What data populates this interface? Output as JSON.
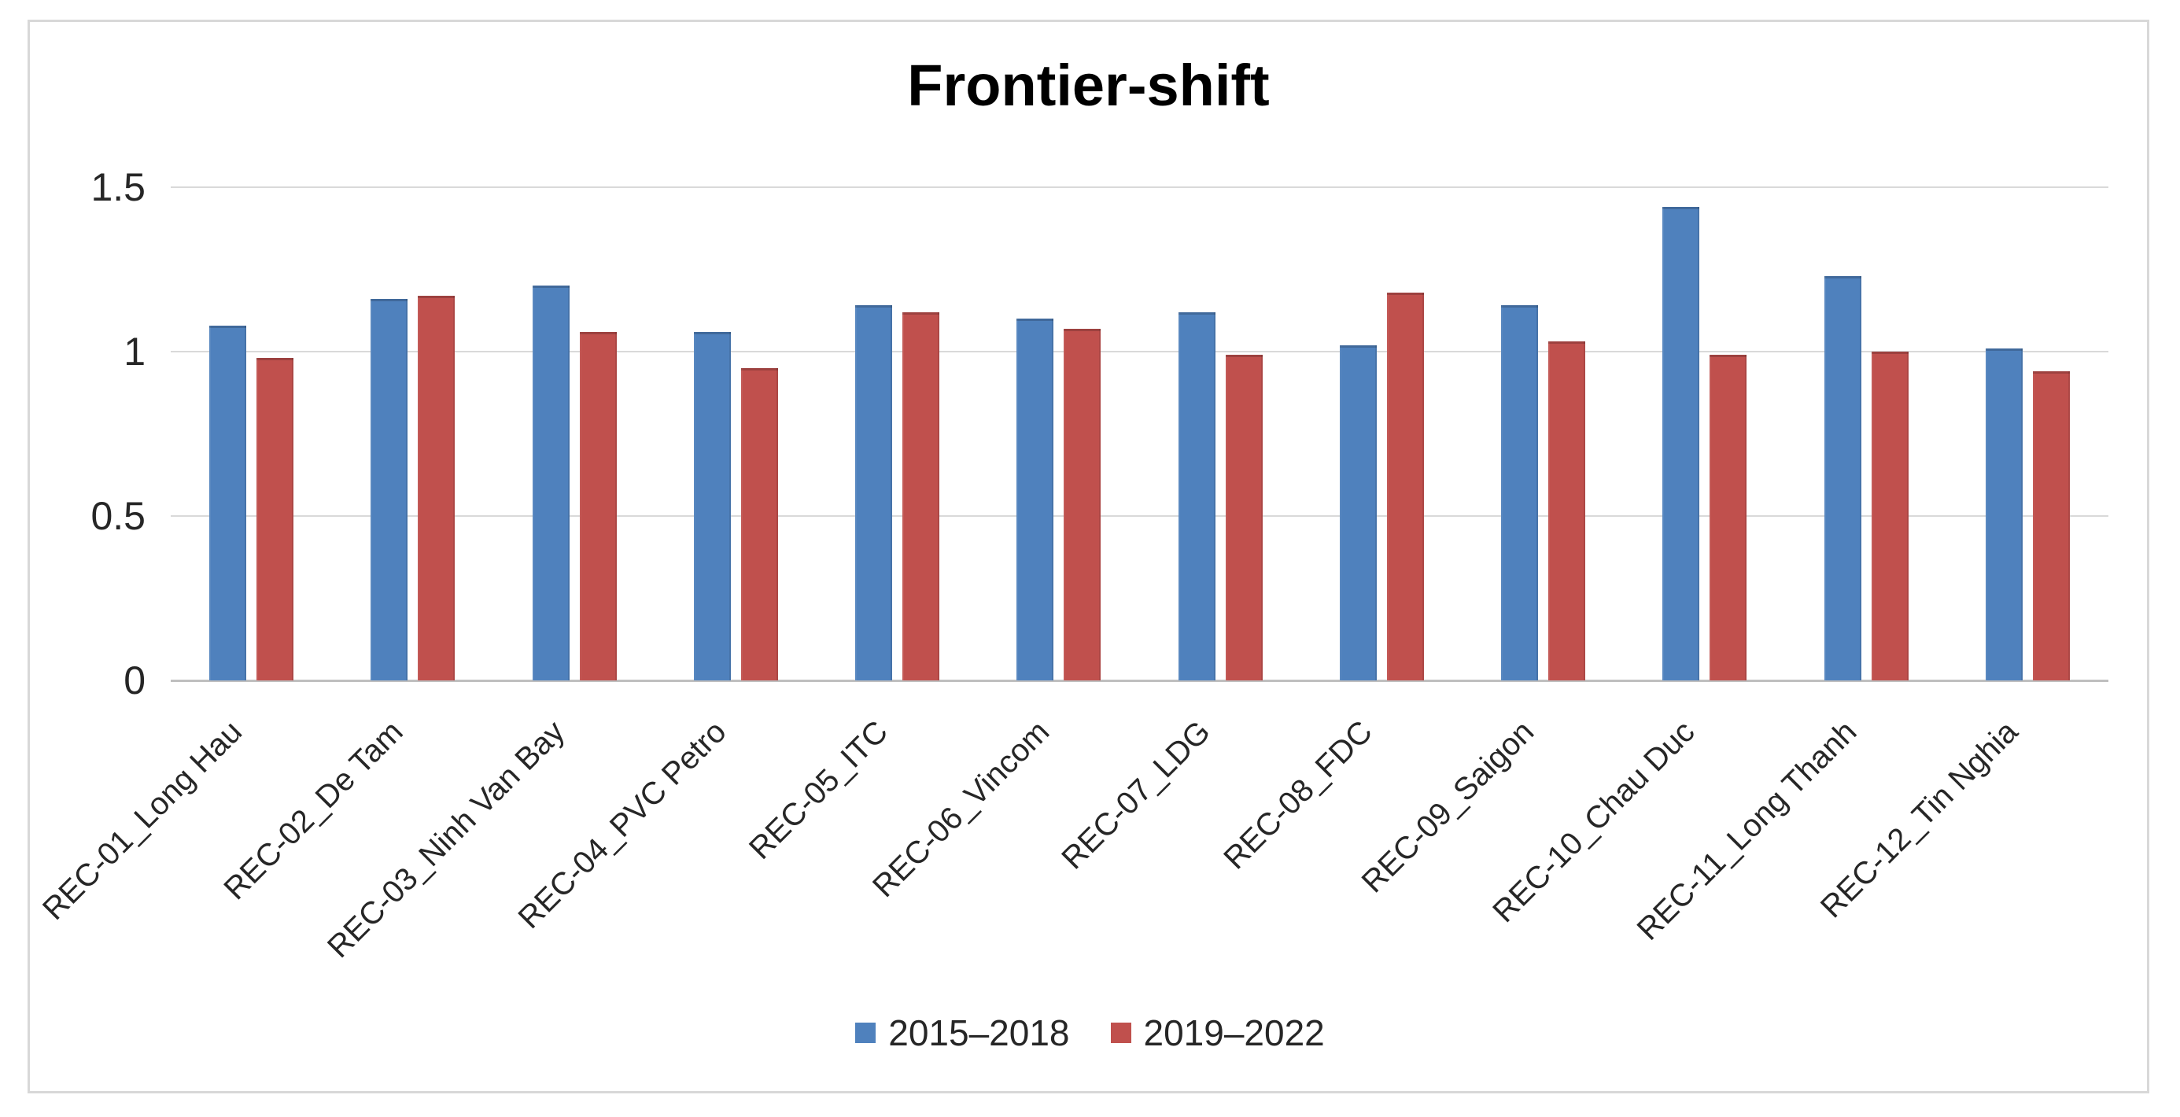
{
  "chart_data": {
    "type": "bar",
    "title": "Frontier-shift",
    "categories": [
      "REC-01_Long Hau",
      "REC-02_De Tam",
      "REC-03_Ninh Van Bay",
      "REC-04_PVC Petro",
      "REC-05_ITC",
      "REC-06_Vincom",
      "REC-07_LDG",
      "REC-08_FDC",
      "REC-09_Saigon",
      "REC-10_Chau Duc",
      "REC-11_Long Thanh",
      "REC-12_Tin Nghia"
    ],
    "series": [
      {
        "name": "2015–2018",
        "color": "#4F81BD",
        "values": [
          1.08,
          1.16,
          1.2,
          1.06,
          1.14,
          1.1,
          1.12,
          1.02,
          1.14,
          1.44,
          1.23,
          1.01
        ]
      },
      {
        "name": "2019–2022",
        "color": "#C0504D",
        "values": [
          0.98,
          1.17,
          1.06,
          0.95,
          1.12,
          1.07,
          0.99,
          1.18,
          1.03,
          0.99,
          1.0,
          0.94
        ]
      }
    ],
    "ylim": [
      0,
      1.5
    ],
    "yticks": [
      {
        "value": 0,
        "label": "0"
      },
      {
        "value": 0.5,
        "label": "0.5"
      },
      {
        "value": 1,
        "label": "1"
      },
      {
        "value": 1.5,
        "label": "1.5"
      }
    ],
    "grid": true,
    "legend_position": "bottom",
    "xlabel": "",
    "ylabel": ""
  },
  "colors": {
    "grid": "#D9D9D9",
    "axis": "#BFBFBF",
    "text": "#262626",
    "frame_border": "#D8D8D8"
  }
}
